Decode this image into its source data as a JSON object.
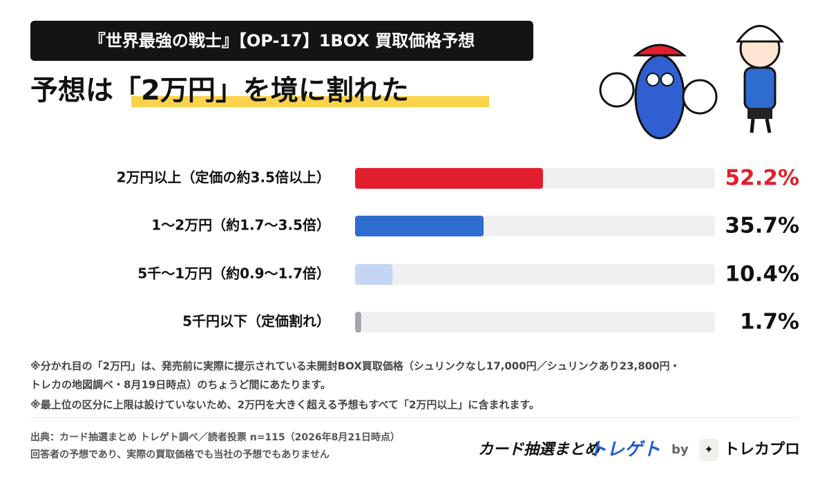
{
  "chart_data": {
    "type": "hbar",
    "title": "『世界最強の戦士』【OP-17】1BOX 買取価格予想",
    "subtitle": "予想は「2万円」を境に割れた",
    "categories": [
      "2万円以上（定価の約3.5倍以上）",
      "1〜2万円（約1.7〜3.5倍）",
      "5千〜1万円（約0.9〜1.7倍）",
      "5千円以下（定価割れ）"
    ],
    "values": [
      52.2,
      35.7,
      10.4,
      1.7
    ],
    "value_labels": [
      "52.2%",
      "35.7%",
      "10.4%",
      "1.7%"
    ],
    "colors": [
      "#e21f2e",
      "#2f6ccf",
      "#c4d6f3",
      "#a3a6ab"
    ],
    "xlim": [
      0,
      100
    ],
    "notes": [
      "※分かれ目の「2万円」は、発売前に実際に提示されている未開封BOX買取価格（シュリンクなし17,000円／シュリンクあり23,800円・",
      "トレカの地図調べ・8月19日時点）のちょうど間にあたります。",
      "※最上位の区分に上限は設けていないため、2万円を大きく超える予想もすべて「2万円以上」に含まれます。"
    ],
    "source": [
      "出典：カード抽選まとめ トレゲト調べ／読者投票 n=115（2026年8月21日時点）",
      "回答者の予想であり、実際の買取価格でも当社の予想でもありません"
    ],
    "brand": {
      "name": "カード抽選まとめ",
      "accent": "トレゲト",
      "by": "by",
      "partner": "トレカプロ"
    }
  }
}
